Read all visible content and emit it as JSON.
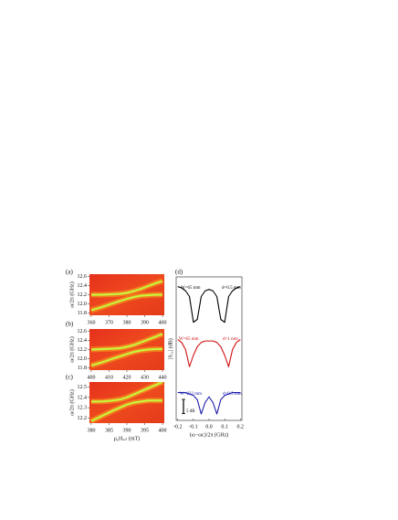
{
  "chart_data": [
    {
      "type": "heatmap",
      "panel_label": "(a)",
      "ylabel": "ω/2π (GHz)",
      "xlim": [
        359,
        401
      ],
      "ylim": [
        11.75,
        12.65
      ],
      "xticks": [
        360,
        370,
        380,
        390,
        400
      ],
      "yticks": [
        12.6,
        12.4,
        12.2,
        {
          "value": 12,
          "label": "12.0"
        },
        11.8
      ],
      "x": [
        360,
        366,
        372,
        376,
        380,
        384,
        388,
        392,
        396,
        400
      ],
      "series": [
        {
          "color": "#c8f53c",
          "values": [
            11.86,
            11.93,
            12.01,
            12.06,
            12.11,
            12.15,
            12.18,
            12.19,
            12.2,
            12.2
          ]
        },
        {
          "color": "#c8f53c",
          "values": [
            12.2,
            12.2,
            12.21,
            12.22,
            12.24,
            12.28,
            12.33,
            12.39,
            12.45,
            12.5
          ]
        }
      ]
    },
    {
      "type": "heatmap",
      "panel_label": "(b)",
      "ylabel": "ω/2π (GHz)",
      "xlim": [
        399,
        441
      ],
      "ylim": [
        11.75,
        12.65
      ],
      "xticks": [
        400,
        410,
        420,
        430,
        440
      ],
      "yticks": [
        12.6,
        12.4,
        12.2,
        {
          "value": 12,
          "label": "12.0"
        },
        11.8
      ],
      "x": [
        400,
        406,
        412,
        416,
        420,
        424,
        428,
        432,
        436,
        440
      ],
      "series": [
        {
          "color": "#c8f53c",
          "values": [
            11.85,
            11.92,
            12.0,
            12.05,
            12.1,
            12.15,
            12.18,
            12.2,
            12.21,
            12.21
          ]
        },
        {
          "color": "#c8f53c",
          "values": [
            12.2,
            12.21,
            12.22,
            12.23,
            12.26,
            12.3,
            12.36,
            12.42,
            12.48,
            12.54
          ]
        }
      ]
    },
    {
      "type": "heatmap",
      "panel_label": "(c)",
      "ylabel": "ω/2π (GHz)",
      "xlabel": "μ₀Hₑₓₜ (mT)",
      "xlim": [
        379.5,
        400.5
      ],
      "ylim": [
        12.15,
        12.55
      ],
      "xticks": [
        380,
        385,
        390,
        395,
        400
      ],
      "yticks": [
        12.5,
        12.4,
        12.3,
        12.2
      ],
      "x": [
        380,
        383,
        386,
        388,
        390,
        392,
        394,
        396,
        398,
        400
      ],
      "series": [
        {
          "color": "#c8f53c",
          "values": [
            12.17,
            12.22,
            12.27,
            12.3,
            12.33,
            12.35,
            12.36,
            12.37,
            12.37,
            12.37
          ]
        },
        {
          "color": "#c8f53c",
          "values": [
            12.36,
            12.36,
            12.37,
            12.38,
            12.4,
            12.43,
            12.46,
            12.49,
            12.52,
            12.55
          ]
        }
      ]
    },
    {
      "type": "line",
      "panel_label": "(d)",
      "ylabel": "|S₂₁| (dB)",
      "xlabel": "(ω−ωc)/2π (GHz)",
      "xlim": [
        -0.21,
        0.21
      ],
      "ylim": [
        -16,
        0
      ],
      "xticks": [
        -0.2,
        -0.1,
        {
          "value": 0,
          "label": "0.0"
        },
        0.1,
        0.2
      ],
      "scale_bar": {
        "value": 5,
        "label": "5 dB"
      },
      "x": [
        -0.2,
        -0.175,
        -0.15,
        -0.125,
        -0.1,
        -0.075,
        -0.05,
        -0.025,
        0,
        0.025,
        0.05,
        0.075,
        0.1,
        0.125,
        0.15,
        0.175,
        0.2
      ],
      "series": [
        {
          "color": "#000000",
          "annotations": [
            "W=65 mm",
            "d=0.5 mm"
          ],
          "values": [
            -0.5,
            -1,
            -2,
            -4,
            -13,
            -12,
            -4,
            -2,
            -1.5,
            -2,
            -4,
            -12,
            -13,
            -4,
            -2,
            -1,
            -0.5
          ]
        },
        {
          "color": "#d01010",
          "annotations": [
            "W=65 mm",
            "d=1 mm"
          ],
          "values": [
            -0.5,
            -1.5,
            -4,
            -10,
            -6,
            -3,
            -1.5,
            -1,
            -1,
            -1,
            -1.5,
            -3,
            -6,
            -10,
            -4,
            -1.5,
            -0.5
          ]
        },
        {
          "color": "#1a1aa8",
          "annotations": [
            "W=232 mm",
            "d=0.5 mm"
          ],
          "values": [
            -0.5,
            -0.5,
            -0.5,
            -1,
            -1.5,
            -3,
            -8,
            -4,
            -2,
            -4,
            -8,
            -3,
            -1.5,
            -1,
            -0.5,
            -0.5,
            -0.5
          ]
        }
      ]
    }
  ]
}
